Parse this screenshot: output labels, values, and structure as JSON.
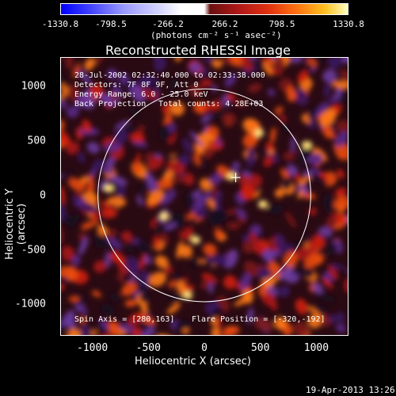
{
  "colorbar": {
    "ticks": [
      "-1330.8",
      "-798.5",
      "-266.2",
      "266.2",
      "798.5",
      "1330.8"
    ],
    "units": "(photons cm⁻² s⁻¹ asec⁻²)",
    "colormap_low": "#0000ff",
    "colormap_high": "#ffffc0"
  },
  "title": "Reconstructed RHESSI Image",
  "info": {
    "line1": "28-Jul-2002 02:32:40.000 to 02:33:38.000",
    "line2": "Detectors: 7F 8F 9F, Att 0",
    "line3": "Energy Range: 6.0 - 25.0 keV",
    "line4a": "Back Projection",
    "line4b": "Total counts: 4.28E+03",
    "spin_axis": "Spin Axis = [280,163]",
    "flare_position": "Flare Position = [-320,-192]"
  },
  "axes": {
    "ylabel": "Heliocentric Y (arcsec)",
    "xlabel": "Heliocentric X (arcsec)",
    "yticks": [
      "1000",
      "500",
      "0",
      "-500",
      "-1000"
    ],
    "xticks": [
      "-1000",
      "-500",
      "0",
      "500",
      "1000"
    ]
  },
  "timestamp": "19-Apr-2013 13:26",
  "chart_data": {
    "type": "heatmap",
    "title": "Reconstructed RHESSI Image",
    "xlabel": "Heliocentric X (arcsec)",
    "ylabel": "Heliocentric Y (arcsec)",
    "xlim": [
      -1280,
      1280
    ],
    "ylim": [
      -1280,
      1260
    ],
    "color_range": [
      -1330.8,
      1330.8
    ],
    "solar_limb_center": [
      0,
      0
    ],
    "solar_limb_radius": 950,
    "spin_axis": [
      280,
      163
    ]
  }
}
